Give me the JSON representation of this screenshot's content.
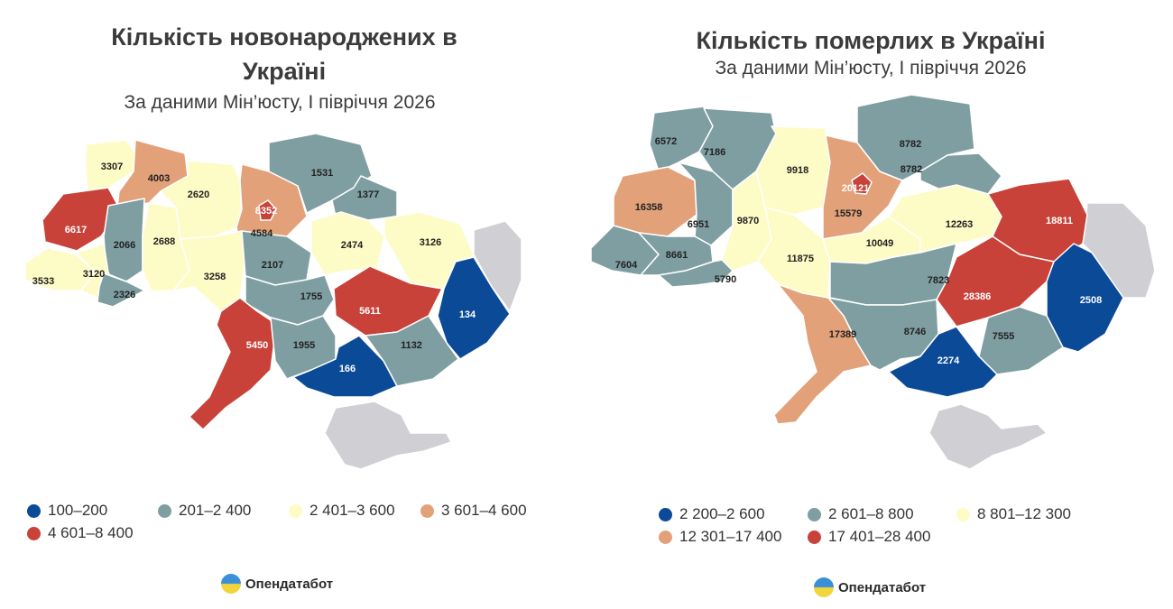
{
  "colors": {
    "blue": "#0b4a97",
    "teal": "#7f9ea2",
    "yellow": "#fdfbc6",
    "orange": "#e3a17a",
    "red": "#c84239",
    "gray": "#cfcfd4"
  },
  "brand": {
    "name": "Опендатабот",
    "icon": "opendatabot-logo-icon"
  },
  "maps": [
    {
      "title": "Кількість новонароджених в Україні",
      "subtitle": "За даними Мін’юсту, І півріччя 2026",
      "legend": [
        {
          "label": "100–200",
          "color": "blue"
        },
        {
          "label": "201–2 400",
          "color": "teal"
        },
        {
          "label": "2 401–3 600",
          "color": "yellow"
        },
        {
          "label": "3 601–4 600",
          "color": "orange"
        },
        {
          "label": "4 601–8 400",
          "color": "red"
        }
      ],
      "regions": [
        {
          "name": "Volyn",
          "value": "3307",
          "color": "yellow"
        },
        {
          "name": "Rivne",
          "value": "4003",
          "color": "orange"
        },
        {
          "name": "Zhytomyr",
          "value": "2620",
          "color": "yellow"
        },
        {
          "name": "Kyiv oblast",
          "value": "4584",
          "color": "orange"
        },
        {
          "name": "Kyiv city",
          "value": "8352",
          "color": "red"
        },
        {
          "name": "Chernihiv",
          "value": "1531",
          "color": "teal"
        },
        {
          "name": "Sumy",
          "value": "1377",
          "color": "teal"
        },
        {
          "name": "Lviv",
          "value": "6617",
          "color": "red"
        },
        {
          "name": "Ternopil",
          "value": "2066",
          "color": "teal"
        },
        {
          "name": "Khmelnytskyi",
          "value": "2688",
          "color": "yellow"
        },
        {
          "name": "Vinnytsia",
          "value": "3258",
          "color": "yellow"
        },
        {
          "name": "Cherkasy",
          "value": "2107",
          "color": "teal"
        },
        {
          "name": "Poltava",
          "value": "2474",
          "color": "yellow"
        },
        {
          "name": "Kharkiv",
          "value": "3126",
          "color": "yellow"
        },
        {
          "name": "Zakarpattia",
          "value": "3533",
          "color": "yellow"
        },
        {
          "name": "Ivano-Frankivsk",
          "value": "3120",
          "color": "yellow"
        },
        {
          "name": "Chernivtsi",
          "value": "2326",
          "color": "teal"
        },
        {
          "name": "Kirovohrad",
          "value": "1755",
          "color": "teal"
        },
        {
          "name": "Dnipropetrovsk",
          "value": "5611",
          "color": "red"
        },
        {
          "name": "Donetsk",
          "value": "134",
          "color": "blue"
        },
        {
          "name": "Odesa",
          "value": "5450",
          "color": "red"
        },
        {
          "name": "Mykolaiv",
          "value": "1955",
          "color": "teal"
        },
        {
          "name": "Zaporizhzhia",
          "value": "1132",
          "color": "teal"
        },
        {
          "name": "Kherson",
          "value": "166",
          "color": "blue"
        },
        {
          "name": "Luhansk",
          "value": "",
          "color": "gray"
        },
        {
          "name": "Crimea",
          "value": "",
          "color": "gray"
        }
      ]
    },
    {
      "title": "Кількість померлих в Україні",
      "subtitle": "За даними Мін’юсту, І півріччя 2026",
      "legend": [
        {
          "label": "2 200–2 600",
          "color": "blue"
        },
        {
          "label": "2 601–8 800",
          "color": "teal"
        },
        {
          "label": "8 801–12 300",
          "color": "yellow"
        },
        {
          "label": "12 301–17 400",
          "color": "orange"
        },
        {
          "label": "17 401–28 400",
          "color": "red"
        }
      ],
      "regions": [
        {
          "name": "Volyn",
          "value": "6572",
          "color": "teal"
        },
        {
          "name": "Rivne",
          "value": "7186",
          "color": "teal"
        },
        {
          "name": "Zhytomyr",
          "value": "9918",
          "color": "yellow"
        },
        {
          "name": "Kyiv oblast",
          "value": "15579",
          "color": "orange"
        },
        {
          "name": "Kyiv city",
          "value": "20121",
          "color": "red"
        },
        {
          "name": "Chernihiv",
          "value": "8782",
          "color": "teal"
        },
        {
          "name": "Sumy",
          "value": "8782",
          "color": "teal"
        },
        {
          "name": "Lviv",
          "value": "16358",
          "color": "orange"
        },
        {
          "name": "Ternopil",
          "value": "6951",
          "color": "teal"
        },
        {
          "name": "Khmelnytskyi",
          "value": "9870",
          "color": "yellow"
        },
        {
          "name": "Vinnytsia",
          "value": "11875",
          "color": "yellow"
        },
        {
          "name": "Cherkasy",
          "value": "10049",
          "color": "yellow"
        },
        {
          "name": "Poltava",
          "value": "12263",
          "color": "yellow"
        },
        {
          "name": "Kharkiv",
          "value": "18811",
          "color": "red"
        },
        {
          "name": "Zakarpattia",
          "value": "7604",
          "color": "teal"
        },
        {
          "name": "Ivano-Frankivsk",
          "value": "8661",
          "color": "teal"
        },
        {
          "name": "Chernivtsi",
          "value": "5790",
          "color": "teal"
        },
        {
          "name": "Kirovohrad",
          "value": "7823",
          "color": "teal"
        },
        {
          "name": "Dnipropetrovsk",
          "value": "28386",
          "color": "red"
        },
        {
          "name": "Donetsk",
          "value": "2508",
          "color": "blue"
        },
        {
          "name": "Odesa",
          "value": "17389",
          "color": "orange"
        },
        {
          "name": "Mykolaiv",
          "value": "8746",
          "color": "teal"
        },
        {
          "name": "Zaporizhzhia",
          "value": "7555",
          "color": "teal"
        },
        {
          "name": "Kherson",
          "value": "2274",
          "color": "blue"
        },
        {
          "name": "Luhansk",
          "value": "",
          "color": "gray"
        },
        {
          "name": "Crimea",
          "value": "",
          "color": "gray"
        }
      ]
    }
  ]
}
